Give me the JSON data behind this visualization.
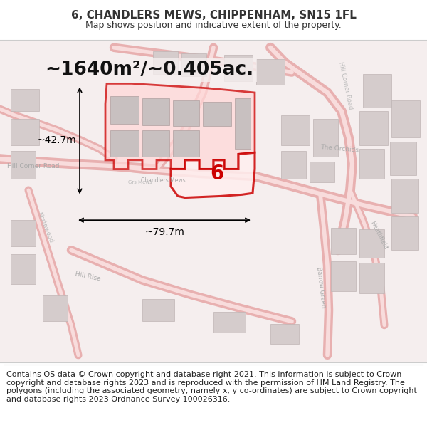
{
  "title": "6, CHANDLERS MEWS, CHIPPENHAM, SN15 1FL",
  "subtitle": "Map shows position and indicative extent of the property.",
  "area_text": "~1640m²/~0.405ac.",
  "dim_width": "~79.7m",
  "dim_height": "~42.7m",
  "plot_number": "6",
  "map_bg": "#f5eeee",
  "footer_text": "Contains OS data © Crown copyright and database right 2021. This information is subject to Crown copyright and database rights 2023 and is reproduced with the permission of HM Land Registry. The polygons (including the associated geometry, namely x, y co-ordinates) are subject to Crown copyright and database rights 2023 Ordnance Survey 100026316.",
  "road_color": "#f0b8b8",
  "building_color": "#d0c8c8",
  "highlight_color": "#cc0000",
  "highlight_fill": "#ffdddd",
  "text_color": "#333333",
  "title_fontsize": 11,
  "subtitle_fontsize": 9,
  "area_fontsize": 20,
  "footer_fontsize": 8
}
